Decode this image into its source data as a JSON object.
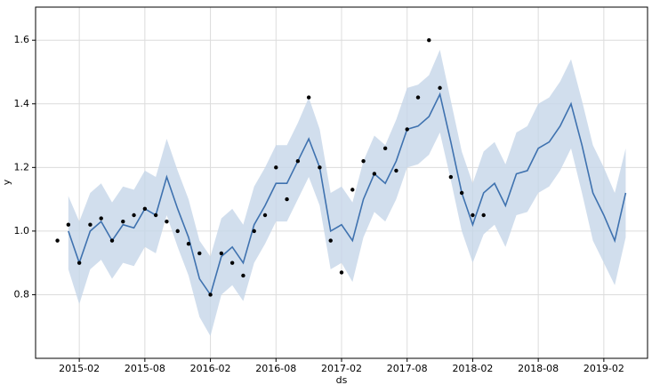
{
  "chart_data": {
    "type": "forecast",
    "xlabel": "ds",
    "ylabel": "y",
    "xlim": [
      "2014-10",
      "2019-06"
    ],
    "xticks": [
      "2015-02",
      "2015-08",
      "2016-02",
      "2016-08",
      "2017-02",
      "2017-08",
      "2018-02",
      "2018-08",
      "2019-02"
    ],
    "ylim": [
      0.6,
      1.704
    ],
    "yticks": [
      0.8,
      {
        "value": 1.0,
        "label": "1.0"
      },
      1.2,
      1.4,
      1.6
    ],
    "grid": true,
    "forecast": {
      "color": "#3f72af",
      "band_color": "#c5d6e8",
      "x": [
        "2015-01",
        "2015-02",
        "2015-03",
        "2015-04",
        "2015-05",
        "2015-06",
        "2015-07",
        "2015-08",
        "2015-09",
        "2015-10",
        "2015-11",
        "2015-12",
        "2016-01",
        "2016-02",
        "2016-03",
        "2016-04",
        "2016-05",
        "2016-06",
        "2016-07",
        "2016-08",
        "2016-09",
        "2016-10",
        "2016-11",
        "2016-12",
        "2017-01",
        "2017-02",
        "2017-03",
        "2017-04",
        "2017-05",
        "2017-06",
        "2017-07",
        "2017-08",
        "2017-09",
        "2017-10",
        "2017-11",
        "2017-12",
        "2018-01",
        "2018-02",
        "2018-03",
        "2018-04",
        "2018-05",
        "2018-06",
        "2018-07",
        "2018-08",
        "2018-09",
        "2018-10",
        "2018-11",
        "2018-12",
        "2019-01",
        "2019-02",
        "2019-03",
        "2019-04"
      ],
      "values": [
        1.0,
        0.9,
        1.0,
        1.03,
        0.97,
        1.02,
        1.01,
        1.07,
        1.05,
        1.17,
        1.07,
        0.98,
        0.85,
        0.8,
        0.92,
        0.95,
        0.9,
        1.02,
        1.08,
        1.15,
        1.15,
        1.22,
        1.29,
        1.2,
        1.0,
        1.02,
        0.97,
        1.1,
        1.18,
        1.15,
        1.22,
        1.32,
        1.33,
        1.36,
        1.43,
        1.28,
        1.12,
        1.02,
        1.12,
        1.15,
        1.08,
        1.18,
        1.19,
        1.26,
        1.28,
        1.33,
        1.4,
        1.27,
        1.12,
        1.05,
        0.97,
        1.12
      ],
      "lower": [
        0.88,
        0.77,
        0.88,
        0.91,
        0.85,
        0.9,
        0.89,
        0.95,
        0.93,
        1.05,
        0.95,
        0.86,
        0.73,
        0.67,
        0.8,
        0.83,
        0.78,
        0.9,
        0.96,
        1.03,
        1.03,
        1.1,
        1.17,
        1.08,
        0.88,
        0.9,
        0.84,
        0.98,
        1.06,
        1.03,
        1.1,
        1.2,
        1.21,
        1.24,
        1.31,
        1.16,
        1.0,
        0.9,
        0.99,
        1.02,
        0.95,
        1.05,
        1.06,
        1.12,
        1.14,
        1.19,
        1.26,
        1.12,
        0.97,
        0.9,
        0.83,
        0.98
      ],
      "upper": [
        1.11,
        1.03,
        1.12,
        1.15,
        1.09,
        1.14,
        1.13,
        1.19,
        1.17,
        1.29,
        1.19,
        1.1,
        0.97,
        0.92,
        1.04,
        1.07,
        1.02,
        1.14,
        1.2,
        1.27,
        1.27,
        1.34,
        1.42,
        1.32,
        1.12,
        1.14,
        1.09,
        1.22,
        1.3,
        1.27,
        1.35,
        1.45,
        1.46,
        1.49,
        1.57,
        1.41,
        1.25,
        1.15,
        1.25,
        1.28,
        1.21,
        1.31,
        1.33,
        1.4,
        1.42,
        1.47,
        1.54,
        1.41,
        1.27,
        1.2,
        1.12,
        1.26
      ]
    },
    "observed": {
      "color": "#000000",
      "x": [
        "2014-12",
        "2015-01",
        "2015-02",
        "2015-03",
        "2015-04",
        "2015-05",
        "2015-06",
        "2015-07",
        "2015-08",
        "2015-09",
        "2015-10",
        "2015-11",
        "2015-12",
        "2016-01",
        "2016-02",
        "2016-03",
        "2016-04",
        "2016-05",
        "2016-06",
        "2016-07",
        "2016-08",
        "2016-09",
        "2016-10",
        "2016-11",
        "2016-12",
        "2017-01",
        "2017-02",
        "2017-03",
        "2017-04",
        "2017-05",
        "2017-06",
        "2017-07",
        "2017-08",
        "2017-09",
        "2017-10",
        "2017-11",
        "2017-12",
        "2018-01",
        "2018-02",
        "2018-03"
      ],
      "values": [
        0.97,
        1.02,
        0.9,
        1.02,
        1.04,
        0.97,
        1.03,
        1.05,
        1.07,
        1.05,
        1.03,
        1.0,
        0.96,
        0.93,
        0.8,
        0.93,
        0.9,
        0.86,
        1.0,
        1.05,
        1.2,
        1.1,
        1.22,
        1.42,
        1.2,
        0.97,
        0.87,
        1.13,
        1.22,
        1.18,
        1.26,
        1.19,
        1.32,
        1.42,
        1.6,
        1.45,
        1.17,
        1.12,
        1.05,
        1.05
      ]
    }
  }
}
